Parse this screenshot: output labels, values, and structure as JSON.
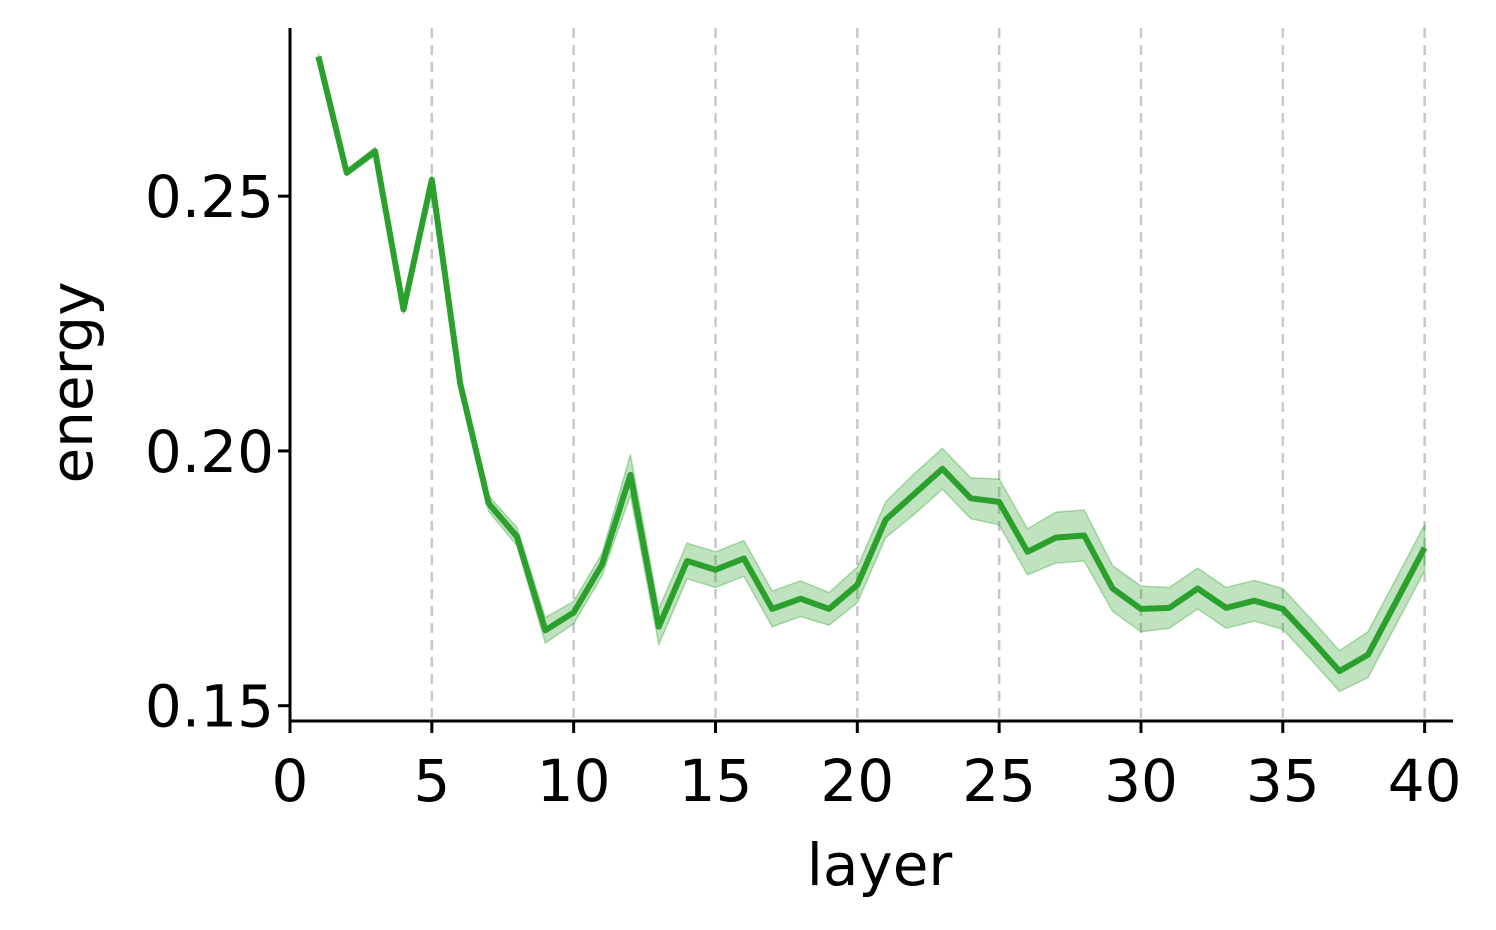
{
  "chart_data": {
    "type": "line",
    "title": "",
    "xlabel": "layer",
    "ylabel": "energy",
    "xlim": [
      0,
      41
    ],
    "ylim": [
      0.147,
      0.283
    ],
    "xticks": [
      0,
      5,
      10,
      15,
      20,
      25,
      30,
      35,
      40
    ],
    "xtick_labels": [
      "0",
      "5",
      "10",
      "15",
      "20",
      "25",
      "30",
      "35",
      "40"
    ],
    "yticks": [
      0.15,
      0.2,
      0.25
    ],
    "ytick_labels": [
      "0.15",
      "0.20",
      "0.25"
    ],
    "grid": "vertical dashed at x ticks",
    "legend": "none",
    "series": [
      {
        "color": "#2ca02c",
        "band_color": "#2ca02c",
        "x": [
          1,
          2,
          3,
          4,
          5,
          6,
          7,
          8,
          9,
          10,
          11,
          12,
          13,
          14,
          15,
          16,
          17,
          18,
          19,
          20,
          21,
          22,
          23,
          24,
          25,
          26,
          27,
          28,
          29,
          30,
          31,
          32,
          33,
          34,
          35,
          36,
          37,
          38,
          39,
          40
        ],
        "y": [
          0.2774,
          0.2546,
          0.2588,
          0.2278,
          0.2532,
          0.2132,
          0.1897,
          0.1832,
          0.1648,
          0.1683,
          0.1777,
          0.1953,
          0.1655,
          0.1784,
          0.1767,
          0.1789,
          0.169,
          0.171,
          0.169,
          0.1737,
          0.1865,
          0.1915,
          0.1965,
          0.1907,
          0.19,
          0.1802,
          0.183,
          0.1834,
          0.173,
          0.169,
          0.1692,
          0.173,
          0.1692,
          0.1706,
          0.169,
          0.163,
          0.1568,
          0.16,
          0.1705,
          0.181
        ],
        "band_half_width": [
          0.0006,
          0.0006,
          0.0008,
          0.001,
          0.0009,
          0.0007,
          0.0015,
          0.0018,
          0.0025,
          0.0022,
          0.0022,
          0.004,
          0.0035,
          0.0035,
          0.0035,
          0.0035,
          0.0035,
          0.0035,
          0.0032,
          0.0035,
          0.0035,
          0.004,
          0.004,
          0.004,
          0.0045,
          0.0045,
          0.005,
          0.005,
          0.0045,
          0.0045,
          0.004,
          0.004,
          0.004,
          0.004,
          0.004,
          0.004,
          0.004,
          0.0045,
          0.0045,
          0.0045
        ]
      }
    ]
  }
}
